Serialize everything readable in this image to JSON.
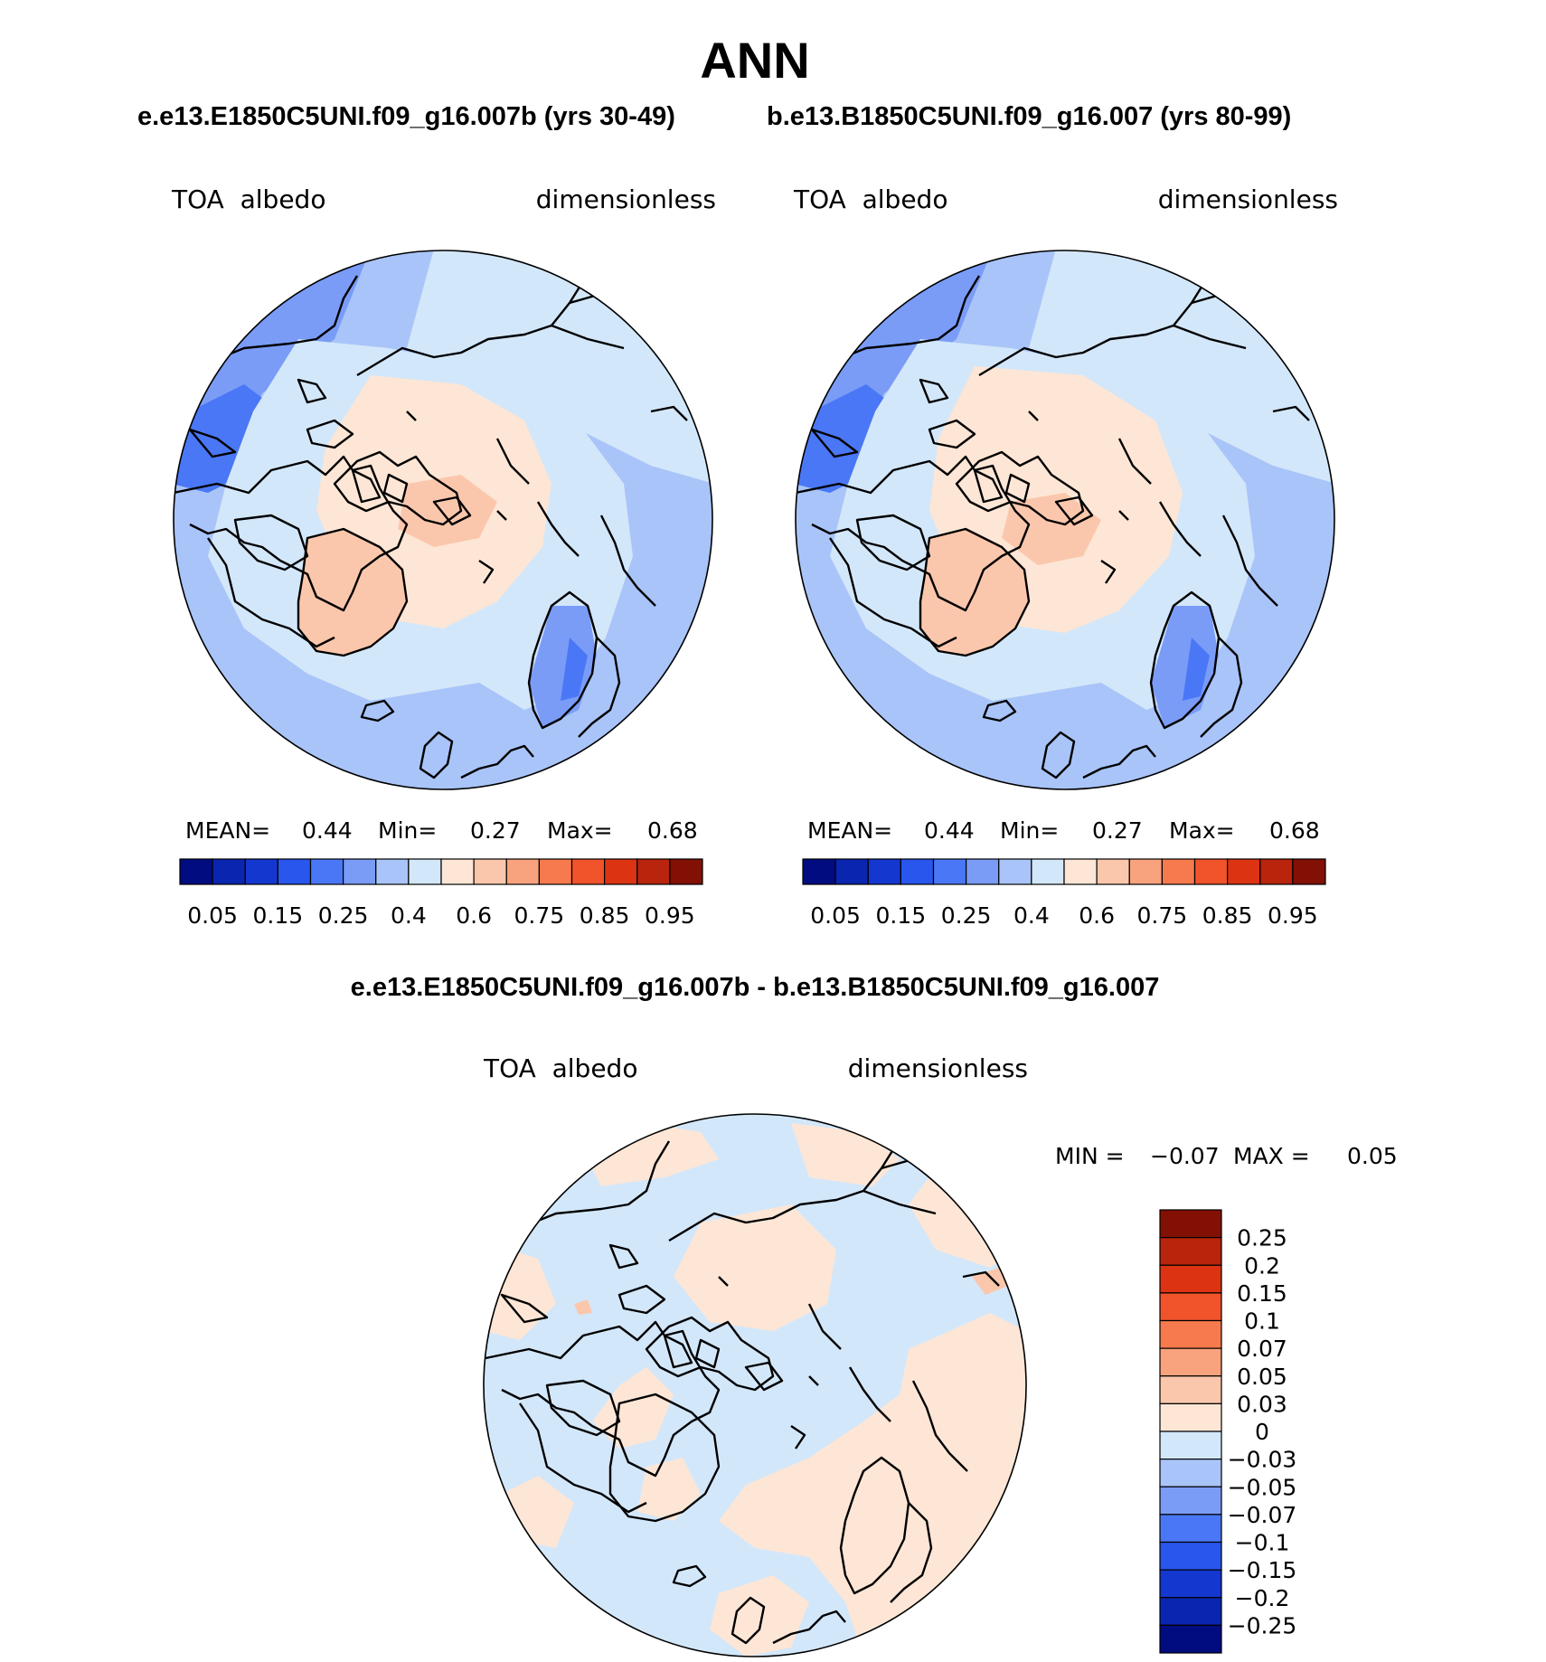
{
  "title": "ANN",
  "subtitle_left": "e.e13.E1850C5UNI.f09_g16.007b (yrs 30-49)",
  "subtitle_right": "b.e13.B1850C5UNI.f09_g16.007 (yrs 80-99)",
  "diff_title": "e.e13.E1850C5UNI.f09_g16.007b - b.e13.B1850C5UNI.f09_g16.007",
  "panels": [
    {
      "variable": "TOA  albedo",
      "units": "dimensionless",
      "mean_label": "MEAN=",
      "mean": "0.44",
      "min_label": "Min=",
      "min": "0.27",
      "max_label": "Max=",
      "max": "0.68"
    },
    {
      "variable": "TOA  albedo",
      "units": "dimensionless",
      "mean_label": "MEAN=",
      "mean": "0.44",
      "min_label": "Min=",
      "min": "0.27",
      "max_label": "Max=",
      "max": "0.68"
    }
  ],
  "diff_panel": {
    "variable": "TOA  albedo",
    "units": "dimensionless",
    "min_label": "MIN =",
    "min": "−0.07",
    "max_label": "MAX =",
    "max": "0.05"
  },
  "colorbar_main": {
    "colors": [
      "#000c80",
      "#0a26b0",
      "#1437cf",
      "#2956ed",
      "#4a77f5",
      "#7a9cf7",
      "#a9c4f8",
      "#d3e7fa",
      "#fde6d6",
      "#fbc7ac",
      "#f9a37e",
      "#f67a4d",
      "#f1532b",
      "#dc3412",
      "#b9240c",
      "#821005"
    ],
    "labels": [
      "0.05",
      "0.15",
      "0.25",
      "0.4",
      "0.6",
      "0.75",
      "0.85",
      "0.95"
    ]
  },
  "colorbar_diff": {
    "colors": [
      "#000c80",
      "#0a26b0",
      "#1437cf",
      "#2956ed",
      "#4a77f5",
      "#7a9cf7",
      "#a9c4f8",
      "#d3e7fa",
      "#fde6d6",
      "#fbc7ac",
      "#f9a37e",
      "#f67a4d",
      "#f1532b",
      "#dc3412",
      "#b9240c",
      "#821005"
    ],
    "labels": [
      "−0.25",
      "−0.2",
      "−0.15",
      "−0.1",
      "−0.07",
      "−0.05",
      "−0.03",
      "0",
      "0.03",
      "0.05",
      "0.07",
      "0.1",
      "0.15",
      "0.2",
      "0.25"
    ]
  }
}
